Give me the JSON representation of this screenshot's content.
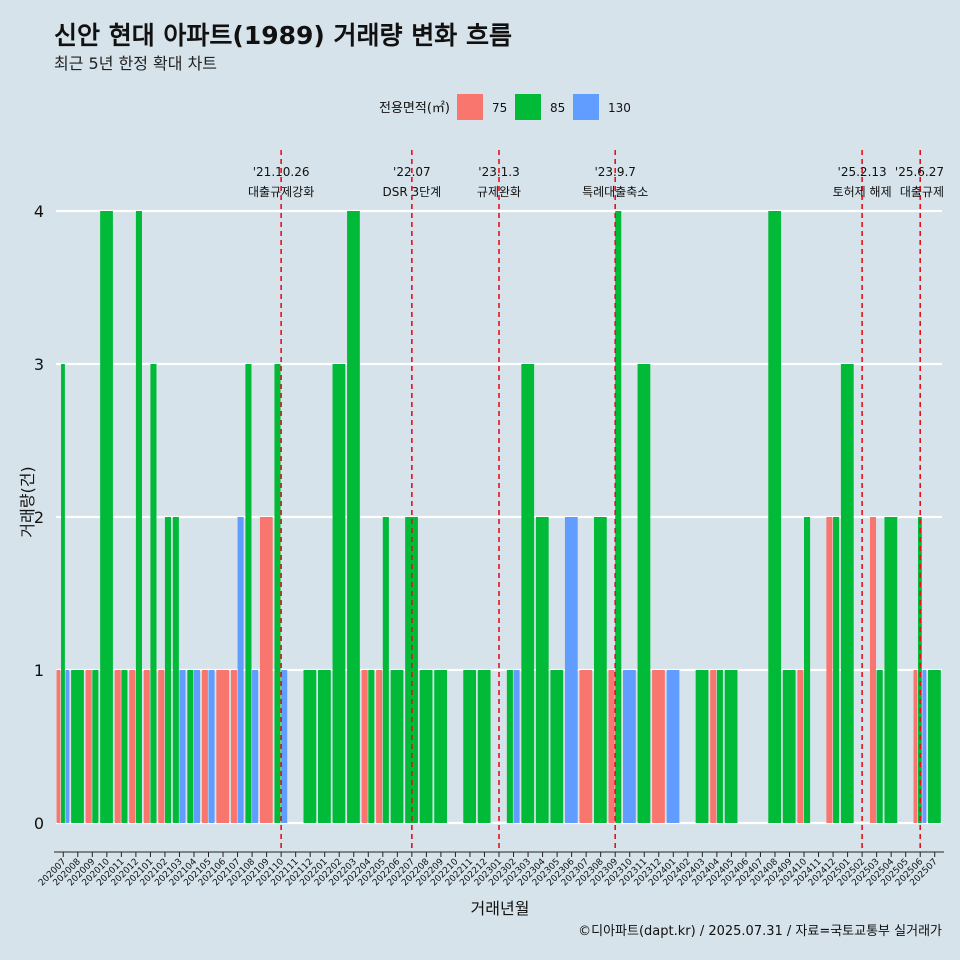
{
  "header": {
    "title": "신안 현대 아파트(1989) 거래량 변화 흐름",
    "subtitle": "최근 5년 한정 확대 차트"
  },
  "legend": {
    "title": "전용면적(㎡)",
    "items": [
      {
        "label": "75",
        "color": "#f8766d"
      },
      {
        "label": "85",
        "color": "#00ba38"
      },
      {
        "label": "130",
        "color": "#619cff"
      }
    ]
  },
  "caption": "©디아파트(dapt.kr) / 2025.07.31 / 자료=국토교통부 실거래가",
  "chart_data": {
    "type": "bar",
    "xlabel": "거래년월",
    "ylabel": "거래량(건)",
    "ylim": [
      0,
      4
    ],
    "yticks": [
      0,
      1,
      2,
      3,
      4
    ],
    "grid": true,
    "legend_position": "top",
    "categories": [
      "202007",
      "202008",
      "202009",
      "202010",
      "202011",
      "202012",
      "202101",
      "202102",
      "202103",
      "202104",
      "202105",
      "202106",
      "202107",
      "202108",
      "202109",
      "202110",
      "202111",
      "202112",
      "202201",
      "202202",
      "202203",
      "202204",
      "202205",
      "202206",
      "202207",
      "202208",
      "202209",
      "202210",
      "202211",
      "202212",
      "202301",
      "202302",
      "202303",
      "202304",
      "202305",
      "202306",
      "202307",
      "202308",
      "202309",
      "202310",
      "202311",
      "202312",
      "202401",
      "202402",
      "202403",
      "202404",
      "202405",
      "202406",
      "202407",
      "202408",
      "202409",
      "202410",
      "202411",
      "202412",
      "202501",
      "202502",
      "202503",
      "202504",
      "202505",
      "202506",
      "202507"
    ],
    "series": [
      {
        "name": "75",
        "color": "#f8766d",
        "values": [
          1,
          0,
          1,
          0,
          1,
          1,
          1,
          1,
          0,
          0,
          1,
          1,
          1,
          0,
          2,
          0,
          0,
          0,
          0,
          0,
          0,
          1,
          1,
          0,
          0,
          0,
          0,
          0,
          0,
          0,
          0,
          0,
          0,
          0,
          0,
          0,
          1,
          0,
          1,
          0,
          0,
          1,
          0,
          0,
          0,
          1,
          0,
          0,
          0,
          0,
          0,
          1,
          0,
          2,
          0,
          0,
          2,
          0,
          0,
          1,
          0
        ]
      },
      {
        "name": "85",
        "color": "#00ba38",
        "values": [
          3,
          1,
          1,
          4,
          1,
          4,
          3,
          2,
          2,
          1,
          0,
          0,
          0,
          3,
          0,
          3,
          0,
          1,
          1,
          3,
          4,
          1,
          2,
          1,
          2,
          1,
          1,
          0,
          1,
          1,
          0,
          1,
          3,
          2,
          1,
          0,
          0,
          2,
          4,
          0,
          3,
          0,
          0,
          0,
          1,
          1,
          1,
          0,
          0,
          4,
          1,
          2,
          0,
          2,
          3,
          0,
          1,
          2,
          0,
          2,
          1
        ]
      },
      {
        "name": "130",
        "color": "#619cff",
        "values": [
          1,
          0,
          0,
          0,
          0,
          0,
          0,
          0,
          1,
          1,
          1,
          0,
          2,
          1,
          0,
          1,
          0,
          0,
          0,
          0,
          0,
          0,
          0,
          0,
          0,
          0,
          0,
          0,
          0,
          0,
          0,
          1,
          0,
          0,
          0,
          2,
          0,
          0,
          0,
          1,
          0,
          0,
          1,
          0,
          0,
          0,
          0,
          0,
          0,
          0,
          0,
          0,
          0,
          0,
          0,
          0,
          0,
          0,
          0,
          1,
          0
        ]
      }
    ],
    "annotations": [
      {
        "x": "202110",
        "date": "'21.10.26",
        "label": "대출규제강화"
      },
      {
        "x": "202207",
        "date": "'22.07",
        "label": "DSR 3단계"
      },
      {
        "x": "202301",
        "date": "'23.1.3",
        "label": "규제완화"
      },
      {
        "x": "202309",
        "date": "'23.9.7",
        "label": "특례대출축소"
      },
      {
        "x": "202502",
        "date": "'25.2.13",
        "label": "토허제 해제"
      },
      {
        "x": "202506",
        "date": "'25.6.27",
        "label": "대출규제"
      }
    ]
  }
}
